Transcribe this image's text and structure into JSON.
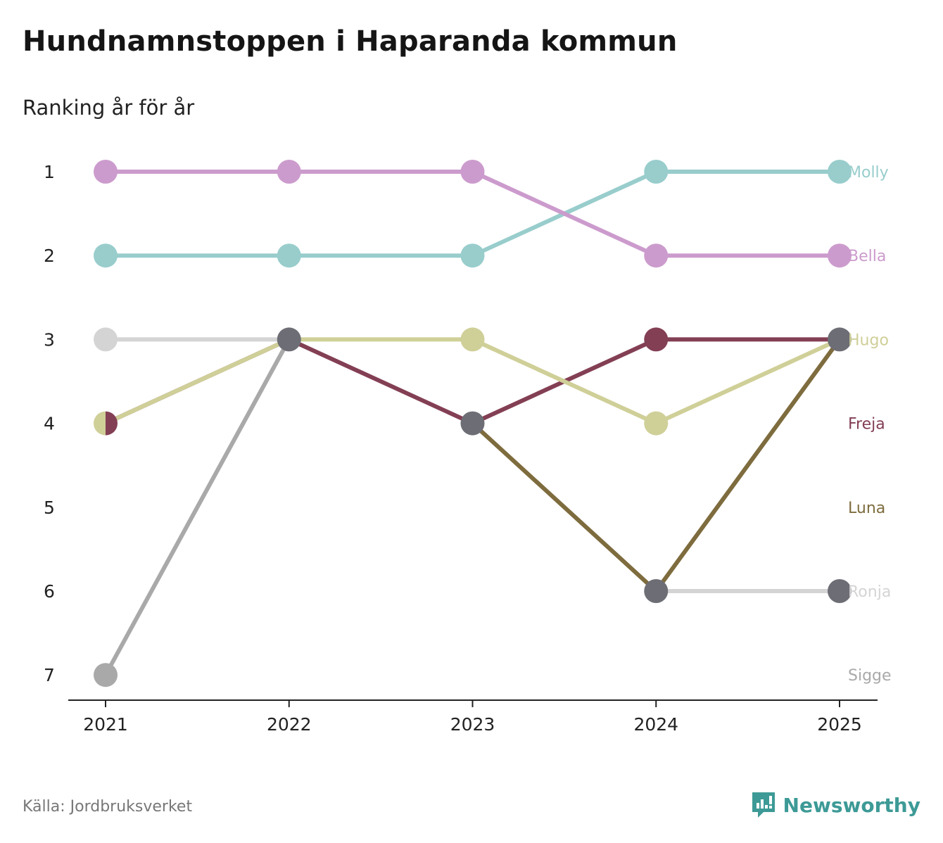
{
  "chart_data": {
    "type": "line",
    "title": "Hundnamnstoppen i Haparanda kommun",
    "subtitle": "Ranking år för år",
    "source": "Källa: Jordbruksverket",
    "brand": "Newsworthy",
    "x": [
      "2021",
      "2022",
      "2023",
      "2024",
      "2025"
    ],
    "y_ticks": [
      "1",
      "2",
      "3",
      "4",
      "5",
      "6",
      "7"
    ],
    "ylim": [
      1,
      7
    ],
    "y_reversed": true,
    "series": [
      {
        "name": "Ronja",
        "color": "#d4d4d4",
        "values": [
          3,
          3,
          null,
          6,
          6
        ]
      },
      {
        "name": "Sigge",
        "color": "#a9a9a9",
        "values": [
          7,
          3,
          null,
          null,
          null
        ]
      },
      {
        "name": "Luna",
        "color": "#7e6c3e",
        "values": [
          null,
          null,
          4,
          6,
          3
        ]
      },
      {
        "name": "Molly",
        "color": "#98cdcc",
        "values": [
          2,
          2,
          2,
          1,
          1
        ]
      },
      {
        "name": "Bella",
        "color": "#cc9bcd",
        "values": [
          1,
          1,
          1,
          2,
          2
        ]
      },
      {
        "name": "Freja",
        "color": "#833f54",
        "values": [
          4,
          3,
          4,
          3,
          3
        ]
      },
      {
        "name": "Hugo",
        "color": "#cfcf98",
        "values": [
          4,
          3,
          3,
          4,
          3
        ]
      }
    ],
    "shared_points": [
      {
        "x": "2021",
        "rank": 4,
        "names": [
          "Hugo",
          "Freja"
        ],
        "style": "split",
        "color": "#cfcf98",
        "color2": "#833f54"
      },
      {
        "x": "2022",
        "rank": 3,
        "names": [
          "Ronja",
          "Sigge",
          "Freja",
          "Hugo"
        ],
        "style": "tie",
        "color": "#6d6d75"
      },
      {
        "x": "2023",
        "rank": 4,
        "names": [
          "Luna",
          "Freja"
        ],
        "style": "tie",
        "color": "#6d6d75"
      },
      {
        "x": "2024",
        "rank": 6,
        "names": [
          "Ronja",
          "Luna"
        ],
        "style": "tie",
        "color": "#6d6d75"
      },
      {
        "x": "2025",
        "rank": 3,
        "names": [
          "Luna",
          "Freja",
          "Hugo"
        ],
        "style": "tie",
        "color": "#6d6d75"
      },
      {
        "x": "2025",
        "rank": 6,
        "names": [
          "Ronja"
        ],
        "style": "tie",
        "color": "#6d6d75"
      }
    ],
    "end_labels": [
      {
        "name": "Molly",
        "rank": 1,
        "color": "#98cdcc"
      },
      {
        "name": "Bella",
        "rank": 2,
        "color": "#cc9bcd"
      },
      {
        "name": "Hugo",
        "rank": 3,
        "color": "#cfcf98"
      },
      {
        "name": "Freja",
        "rank": 4,
        "color": "#833f54"
      },
      {
        "name": "Luna",
        "rank": 5,
        "color": "#7e6c3e"
      },
      {
        "name": "Ronja",
        "rank": 6,
        "color": "#d4d4d4"
      },
      {
        "name": "Sigge",
        "rank": 7,
        "color": "#a9a9a9"
      }
    ],
    "axis_color": "#222222",
    "brand_color": "#3d9a96"
  }
}
